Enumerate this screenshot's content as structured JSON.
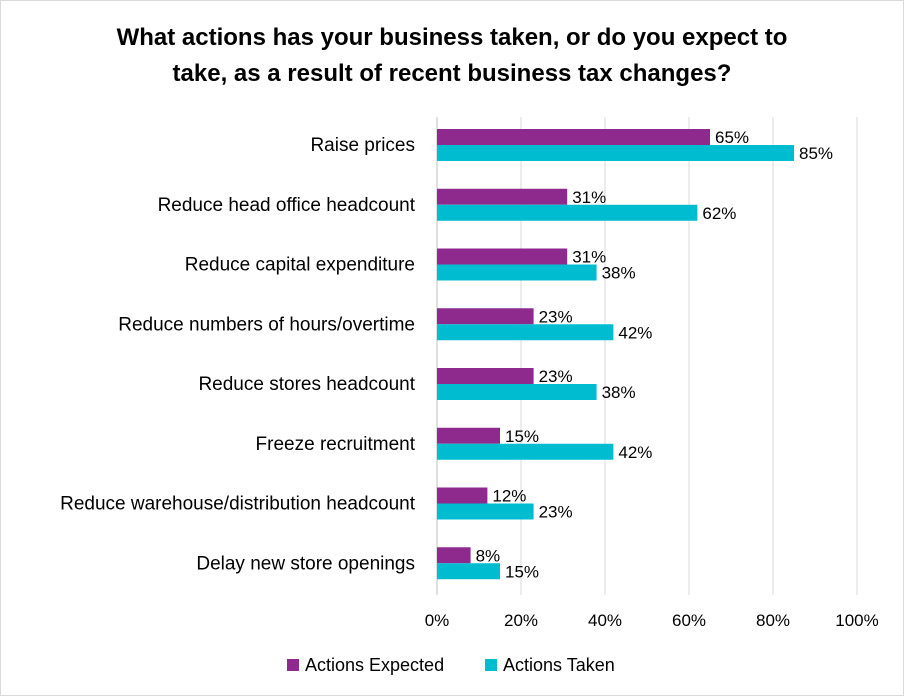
{
  "chart_data": {
    "type": "bar",
    "orientation": "horizontal",
    "title_lines": [
      "What actions has your business taken, or do you expect to",
      "take, as a result of recent business tax changes?"
    ],
    "categories": [
      "Raise prices",
      "Reduce head office headcount",
      "Reduce capital expenditure",
      "Reduce numbers of hours/overtime",
      "Reduce stores headcount",
      "Freeze recruitment",
      "Reduce warehouse/distribution headcount",
      "Delay new store openings"
    ],
    "series": [
      {
        "name": "Actions Expected",
        "color": "#8e2a8e",
        "values": [
          65,
          31,
          31,
          23,
          23,
          15,
          12,
          8
        ],
        "labels": [
          "65%",
          "31%",
          "31%",
          "23%",
          "23%",
          "15%",
          "12%",
          "8%"
        ]
      },
      {
        "name": "Actions Taken",
        "color": "#00bcd0",
        "values": [
          85,
          62,
          38,
          42,
          38,
          42,
          23,
          15
        ],
        "labels": [
          "85%",
          "62%",
          "38%",
          "42%",
          "38%",
          "42%",
          "23%",
          "15%"
        ]
      }
    ],
    "xlim": [
      0,
      100
    ],
    "x_ticks": [
      0,
      20,
      40,
      60,
      80,
      100
    ],
    "x_tick_labels": [
      "0%",
      "20%",
      "40%",
      "60%",
      "80%",
      "100%"
    ],
    "grid": true,
    "legend": "bottom-center"
  }
}
